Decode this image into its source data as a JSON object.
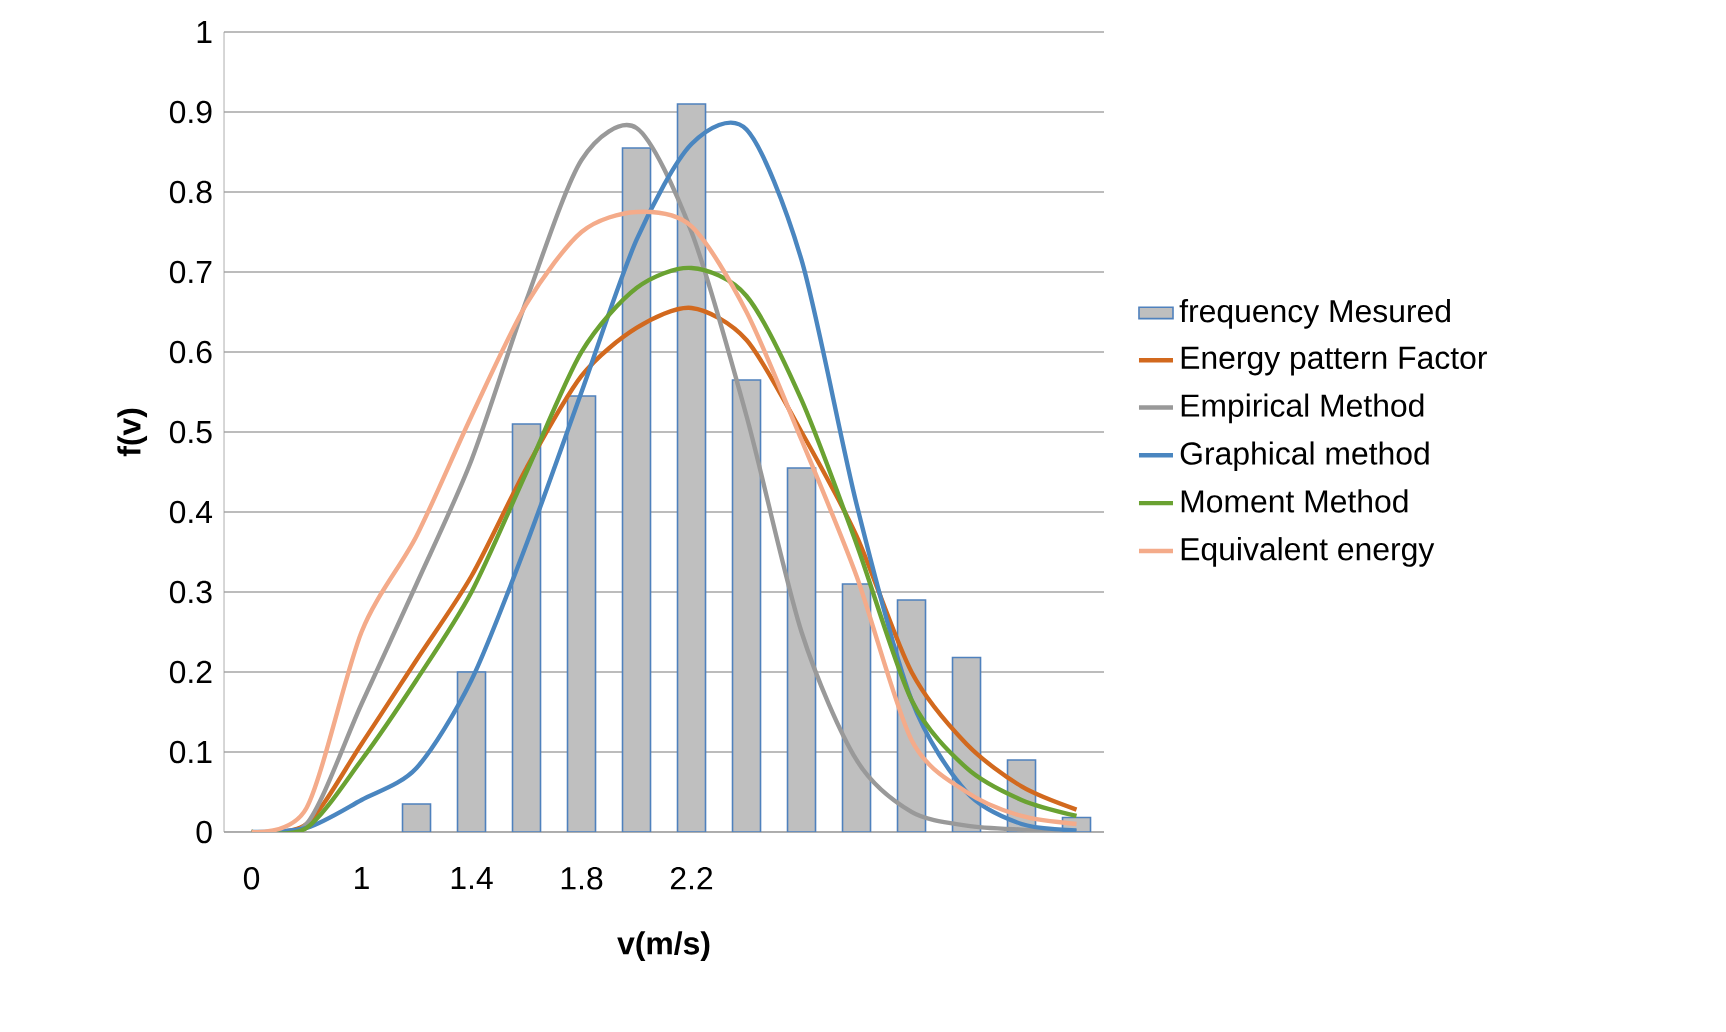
{
  "chart_data": {
    "type": "bar",
    "xlabel": "v(m/s)",
    "ylabel": "f(v)",
    "categories": [
      "0",
      null,
      "1",
      null,
      "1.4",
      null,
      "1.8",
      null,
      "2.2",
      null,
      null,
      null,
      null,
      null,
      null,
      null
    ],
    "series": [
      {
        "name": "frequency Mesured",
        "color": "#bfbfbf",
        "values": [
          null,
          null,
          null,
          0.035,
          0.2,
          0.51,
          0.545,
          0.855,
          0.91,
          0.565,
          0.455,
          0.31,
          0.29,
          0.218,
          0.09,
          0.018
        ]
      },
      {
        "name": "Energy pattern Factor",
        "type": "line",
        "color": "#d2691e",
        "values": [
          0,
          0.01,
          0.11,
          0.215,
          0.32,
          0.455,
          0.57,
          0.63,
          0.655,
          0.615,
          0.5,
          0.37,
          0.2,
          0.11,
          0.057,
          0.028
        ]
      },
      {
        "name": "Empirical Method",
        "type": "line",
        "color": "#999999",
        "values": [
          0,
          0.01,
          0.16,
          0.31,
          0.465,
          0.665,
          0.84,
          0.88,
          0.75,
          0.52,
          0.25,
          0.09,
          0.025,
          0.008,
          0.003,
          0.001
        ]
      },
      {
        "name": "Graphical method",
        "type": "line",
        "color": "#4a86c0",
        "values": [
          0,
          0.005,
          0.04,
          0.08,
          0.19,
          0.36,
          0.55,
          0.74,
          0.86,
          0.878,
          0.715,
          0.41,
          0.165,
          0.05,
          0.01,
          0.002
        ]
      },
      {
        "name": "Moment Method",
        "type": "line",
        "color": "#6aa232",
        "values": [
          0,
          0.005,
          0.09,
          0.19,
          0.3,
          0.45,
          0.6,
          0.68,
          0.705,
          0.67,
          0.54,
          0.36,
          0.165,
          0.08,
          0.04,
          0.02
        ]
      },
      {
        "name": "Equivalent energy",
        "type": "line",
        "color": "#f4ab8a",
        "values": [
          0,
          0.03,
          0.25,
          0.37,
          0.52,
          0.66,
          0.75,
          0.775,
          0.757,
          0.65,
          0.49,
          0.32,
          0.115,
          0.05,
          0.02,
          0.01
        ]
      }
    ],
    "ylim": [
      0,
      1
    ],
    "yticks": [
      0,
      0.1,
      0.2,
      0.3,
      0.4,
      0.5,
      0.6,
      0.7,
      0.8,
      0.9,
      1
    ],
    "grid": "y",
    "legend": "right"
  }
}
